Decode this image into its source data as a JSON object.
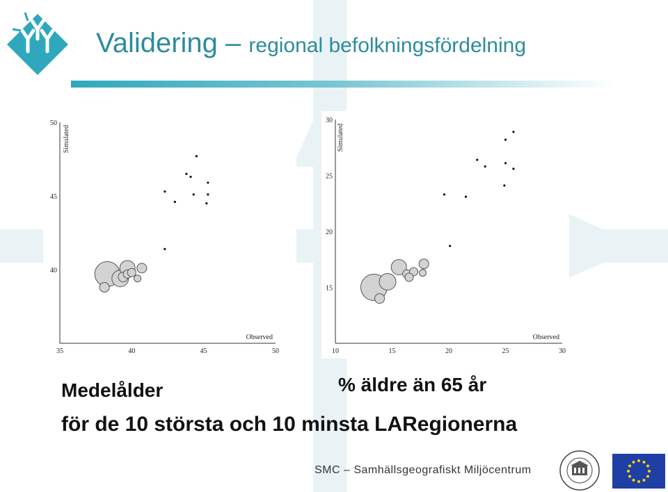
{
  "title": {
    "main": "Validering – ",
    "sub": "regional befolkningsfördelning"
  },
  "labels": {
    "left_caption": "Medelålder",
    "right_caption": "% äldre än 65 år",
    "bottom_caption": "för de 10 största och 10 minsta LARegionerna"
  },
  "footer": {
    "text": "SMC – Samhällsgeografiskt Miljöcentrum"
  },
  "colors": {
    "accent": "#2e8b9e",
    "bubble_fill": "#d3d3d3",
    "bubble_stroke": "#555555"
  },
  "icons": {
    "logo": "umea-university-logo",
    "seal": "umea-universitet-seal",
    "flag": "eu-flag"
  },
  "chart_data": [
    {
      "type": "scatter",
      "xlabel": "Observed",
      "ylabel": "Simulated",
      "xlim": [
        35,
        50
      ],
      "ylim": [
        35,
        50
      ],
      "x_ticks": [
        "35",
        "40",
        "45",
        "50"
      ],
      "y_ticks": [
        "40",
        "45",
        "50"
      ],
      "points": [
        {
          "x": 44.5,
          "y": 47.7
        },
        {
          "x": 43.8,
          "y": 46.5
        },
        {
          "x": 44.1,
          "y": 46.3
        },
        {
          "x": 45.3,
          "y": 45.9
        },
        {
          "x": 42.3,
          "y": 45.3
        },
        {
          "x": 44.3,
          "y": 45.1
        },
        {
          "x": 45.3,
          "y": 45.1
        },
        {
          "x": 43.0,
          "y": 44.6
        },
        {
          "x": 45.2,
          "y": 44.5
        },
        {
          "x": 42.3,
          "y": 41.4
        }
      ],
      "bubbles": [
        {
          "x": 38.3,
          "y": 39.7,
          "size": 18
        },
        {
          "x": 39.2,
          "y": 39.4,
          "size": 12
        },
        {
          "x": 39.7,
          "y": 40.1,
          "size": 11
        },
        {
          "x": 39.4,
          "y": 39.5,
          "size": 7
        },
        {
          "x": 39.7,
          "y": 39.7,
          "size": 6
        },
        {
          "x": 40.0,
          "y": 39.8,
          "size": 6
        },
        {
          "x": 40.7,
          "y": 40.1,
          "size": 7
        },
        {
          "x": 40.4,
          "y": 39.4,
          "size": 5
        },
        {
          "x": 38.1,
          "y": 38.8,
          "size": 7
        }
      ]
    },
    {
      "type": "scatter",
      "xlabel": "Observed",
      "ylabel": "Simulated",
      "xlim": [
        10,
        30
      ],
      "ylim": [
        10,
        30
      ],
      "x_ticks": [
        "10",
        "15",
        "20",
        "25",
        "30"
      ],
      "y_ticks": [
        "15",
        "20",
        "25",
        "30"
      ],
      "points": [
        {
          "x": 25.7,
          "y": 28.9
        },
        {
          "x": 25.0,
          "y": 28.2
        },
        {
          "x": 22.5,
          "y": 26.4
        },
        {
          "x": 25.0,
          "y": 26.1
        },
        {
          "x": 23.2,
          "y": 25.8
        },
        {
          "x": 25.7,
          "y": 25.6
        },
        {
          "x": 24.9,
          "y": 24.1
        },
        {
          "x": 19.6,
          "y": 23.3
        },
        {
          "x": 21.5,
          "y": 23.1
        },
        {
          "x": 20.1,
          "y": 18.7
        }
      ],
      "bubbles": [
        {
          "x": 13.4,
          "y": 15.0,
          "size": 19
        },
        {
          "x": 14.6,
          "y": 15.5,
          "size": 12
        },
        {
          "x": 15.6,
          "y": 16.8,
          "size": 11
        },
        {
          "x": 16.3,
          "y": 16.2,
          "size": 6
        },
        {
          "x": 16.9,
          "y": 16.4,
          "size": 6
        },
        {
          "x": 16.5,
          "y": 15.9,
          "size": 6
        },
        {
          "x": 17.8,
          "y": 17.1,
          "size": 7
        },
        {
          "x": 17.7,
          "y": 16.3,
          "size": 5
        },
        {
          "x": 13.9,
          "y": 14.0,
          "size": 7
        }
      ]
    }
  ]
}
